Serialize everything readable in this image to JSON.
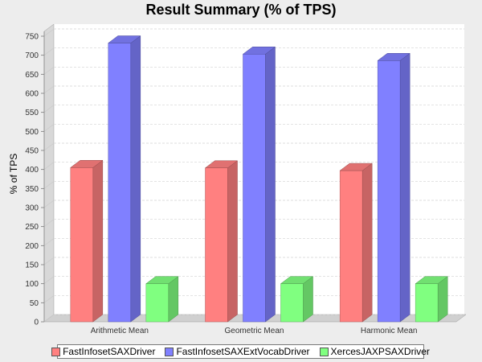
{
  "chart_data": {
    "type": "bar",
    "title": "Result Summary (% of TPS)",
    "xlabel": "",
    "ylabel": "% of TPS",
    "categories": [
      "Arithmetic Mean",
      "Geometric Mean",
      "Harmonic Mean"
    ],
    "series": [
      {
        "name": "FastInfosetSAXDriver",
        "values": [
          405,
          404,
          397
        ],
        "color": "#ff8080"
      },
      {
        "name": "FastInfosetSAXExtVocabDriver",
        "values": [
          732,
          703,
          686
        ],
        "color": "#8080ff"
      },
      {
        "name": "XercesJAXPSAXDriver",
        "values": [
          100,
          100,
          100
        ],
        "color": "#80ff80"
      }
    ],
    "ylim": [
      0,
      750
    ],
    "yticks": [
      0,
      50,
      100,
      150,
      200,
      250,
      300,
      350,
      400,
      450,
      500,
      550,
      600,
      650,
      700,
      750
    ],
    "grid": true,
    "legend_position": "bottom",
    "style": "3d"
  }
}
